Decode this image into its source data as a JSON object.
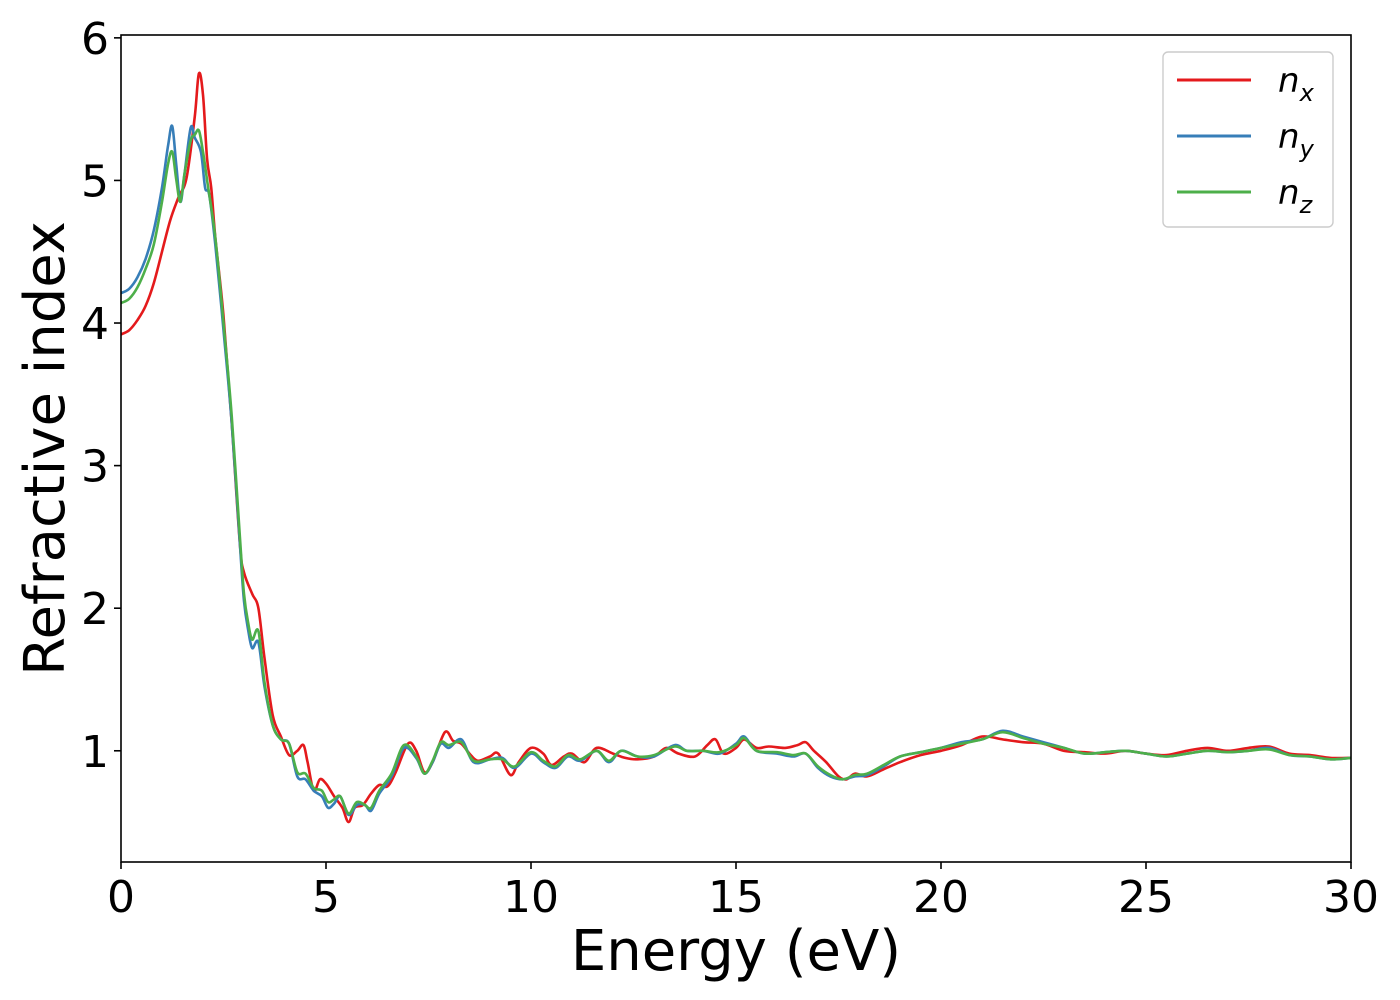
{
  "chart_data": {
    "type": "line",
    "xlabel": "Energy (eV)",
    "ylabel": "Refractive index",
    "xlim": [
      0,
      30
    ],
    "ylim": [
      0.22,
      6.02
    ],
    "xticks": [
      0,
      5,
      10,
      15,
      20,
      25,
      30
    ],
    "yticks": [
      1,
      2,
      3,
      4,
      5,
      6
    ],
    "grid": false,
    "legend_position": "top-right",
    "series": [
      {
        "name": "n",
        "subscript": "x",
        "color": "#e41a1c",
        "points": [
          [
            0,
            3.92
          ],
          [
            0.2,
            3.95
          ],
          [
            0.4,
            4.02
          ],
          [
            0.6,
            4.12
          ],
          [
            0.8,
            4.28
          ],
          [
            1.0,
            4.5
          ],
          [
            1.2,
            4.72
          ],
          [
            1.4,
            4.88
          ],
          [
            1.6,
            5.02
          ],
          [
            1.8,
            5.45
          ],
          [
            1.9,
            5.75
          ],
          [
            2.0,
            5.6
          ],
          [
            2.1,
            5.15
          ],
          [
            2.2,
            4.95
          ],
          [
            2.3,
            4.6
          ],
          [
            2.5,
            4.05
          ],
          [
            2.7,
            3.3
          ],
          [
            2.9,
            2.45
          ],
          [
            3.0,
            2.25
          ],
          [
            3.2,
            2.1
          ],
          [
            3.35,
            2.0
          ],
          [
            3.5,
            1.65
          ],
          [
            3.7,
            1.25
          ],
          [
            3.9,
            1.1
          ],
          [
            4.1,
            0.97
          ],
          [
            4.3,
            1.0
          ],
          [
            4.45,
            1.04
          ],
          [
            4.55,
            0.92
          ],
          [
            4.7,
            0.72
          ],
          [
            4.85,
            0.8
          ],
          [
            5.0,
            0.77
          ],
          [
            5.2,
            0.68
          ],
          [
            5.4,
            0.6
          ],
          [
            5.55,
            0.5
          ],
          [
            5.7,
            0.6
          ],
          [
            5.9,
            0.62
          ],
          [
            6.1,
            0.7
          ],
          [
            6.3,
            0.76
          ],
          [
            6.5,
            0.75
          ],
          [
            6.7,
            0.85
          ],
          [
            7.0,
            1.05
          ],
          [
            7.2,
            1.0
          ],
          [
            7.4,
            0.85
          ],
          [
            7.6,
            0.92
          ],
          [
            7.9,
            1.13
          ],
          [
            8.1,
            1.07
          ],
          [
            8.3,
            1.05
          ],
          [
            8.5,
            0.98
          ],
          [
            8.7,
            0.93
          ],
          [
            9.0,
            0.96
          ],
          [
            9.2,
            0.98
          ],
          [
            9.5,
            0.83
          ],
          [
            9.7,
            0.92
          ],
          [
            10.0,
            1.02
          ],
          [
            10.3,
            0.98
          ],
          [
            10.5,
            0.9
          ],
          [
            10.8,
            0.96
          ],
          [
            11.0,
            0.98
          ],
          [
            11.3,
            0.92
          ],
          [
            11.6,
            1.02
          ],
          [
            12.0,
            0.98
          ],
          [
            12.3,
            0.95
          ],
          [
            12.6,
            0.94
          ],
          [
            13.0,
            0.96
          ],
          [
            13.3,
            1.02
          ],
          [
            13.6,
            0.98
          ],
          [
            14.0,
            0.96
          ],
          [
            14.3,
            1.04
          ],
          [
            14.5,
            1.08
          ],
          [
            14.7,
            0.98
          ],
          [
            15.0,
            1.02
          ],
          [
            15.2,
            1.08
          ],
          [
            15.5,
            1.02
          ],
          [
            15.8,
            1.03
          ],
          [
            16.2,
            1.02
          ],
          [
            16.5,
            1.04
          ],
          [
            16.7,
            1.06
          ],
          [
            16.9,
            1.0
          ],
          [
            17.2,
            0.92
          ],
          [
            17.5,
            0.82
          ],
          [
            17.7,
            0.8
          ],
          [
            17.9,
            0.84
          ],
          [
            18.2,
            0.82
          ],
          [
            18.6,
            0.87
          ],
          [
            19.0,
            0.92
          ],
          [
            19.5,
            0.97
          ],
          [
            20.0,
            1.0
          ],
          [
            20.5,
            1.04
          ],
          [
            21.0,
            1.1
          ],
          [
            21.5,
            1.08
          ],
          [
            22.0,
            1.06
          ],
          [
            22.5,
            1.05
          ],
          [
            23.0,
            1.0
          ],
          [
            23.5,
            0.99
          ],
          [
            24.0,
            0.98
          ],
          [
            24.5,
            1.0
          ],
          [
            25.0,
            0.98
          ],
          [
            25.5,
            0.97
          ],
          [
            26.0,
            1.0
          ],
          [
            26.5,
            1.02
          ],
          [
            27.0,
            1.0
          ],
          [
            27.5,
            1.02
          ],
          [
            28.0,
            1.03
          ],
          [
            28.5,
            0.98
          ],
          [
            29.0,
            0.97
          ],
          [
            29.5,
            0.95
          ],
          [
            30.0,
            0.95
          ]
        ]
      },
      {
        "name": "n",
        "subscript": "y",
        "color": "#377eb8",
        "points": [
          [
            0,
            4.21
          ],
          [
            0.2,
            4.24
          ],
          [
            0.4,
            4.32
          ],
          [
            0.6,
            4.45
          ],
          [
            0.8,
            4.65
          ],
          [
            1.0,
            4.95
          ],
          [
            1.15,
            5.25
          ],
          [
            1.25,
            5.38
          ],
          [
            1.35,
            5.1
          ],
          [
            1.45,
            4.85
          ],
          [
            1.55,
            5.05
          ],
          [
            1.7,
            5.37
          ],
          [
            1.8,
            5.3
          ],
          [
            1.95,
            5.2
          ],
          [
            2.05,
            4.95
          ],
          [
            2.15,
            4.9
          ],
          [
            2.3,
            4.55
          ],
          [
            2.5,
            3.95
          ],
          [
            2.7,
            3.3
          ],
          [
            2.9,
            2.45
          ],
          [
            3.0,
            2.05
          ],
          [
            3.1,
            1.85
          ],
          [
            3.2,
            1.72
          ],
          [
            3.35,
            1.76
          ],
          [
            3.5,
            1.45
          ],
          [
            3.7,
            1.18
          ],
          [
            3.9,
            1.08
          ],
          [
            4.1,
            1.05
          ],
          [
            4.3,
            0.82
          ],
          [
            4.5,
            0.8
          ],
          [
            4.7,
            0.72
          ],
          [
            4.9,
            0.68
          ],
          [
            5.05,
            0.6
          ],
          [
            5.2,
            0.63
          ],
          [
            5.35,
            0.68
          ],
          [
            5.55,
            0.55
          ],
          [
            5.75,
            0.62
          ],
          [
            5.95,
            0.62
          ],
          [
            6.1,
            0.58
          ],
          [
            6.3,
            0.7
          ],
          [
            6.6,
            0.82
          ],
          [
            6.9,
            1.02
          ],
          [
            7.2,
            0.95
          ],
          [
            7.4,
            0.84
          ],
          [
            7.6,
            0.92
          ],
          [
            7.8,
            1.05
          ],
          [
            8.0,
            1.02
          ],
          [
            8.3,
            1.08
          ],
          [
            8.6,
            0.92
          ],
          [
            9.0,
            0.94
          ],
          [
            9.3,
            0.95
          ],
          [
            9.6,
            0.88
          ],
          [
            10.0,
            0.98
          ],
          [
            10.3,
            0.92
          ],
          [
            10.6,
            0.88
          ],
          [
            10.9,
            0.96
          ],
          [
            11.2,
            0.93
          ],
          [
            11.6,
            1.0
          ],
          [
            11.9,
            0.92
          ],
          [
            12.2,
            1.0
          ],
          [
            12.6,
            0.96
          ],
          [
            13.0,
            0.96
          ],
          [
            13.5,
            1.04
          ],
          [
            13.8,
            1.0
          ],
          [
            14.2,
            1.0
          ],
          [
            14.6,
            0.98
          ],
          [
            15.0,
            1.05
          ],
          [
            15.2,
            1.1
          ],
          [
            15.5,
            1.0
          ],
          [
            16.0,
            0.98
          ],
          [
            16.4,
            0.96
          ],
          [
            16.7,
            0.98
          ],
          [
            17.0,
            0.88
          ],
          [
            17.3,
            0.82
          ],
          [
            17.6,
            0.8
          ],
          [
            17.9,
            0.82
          ],
          [
            18.2,
            0.83
          ],
          [
            18.6,
            0.89
          ],
          [
            19.0,
            0.96
          ],
          [
            19.5,
            0.99
          ],
          [
            20.0,
            1.02
          ],
          [
            20.5,
            1.06
          ],
          [
            21.0,
            1.08
          ],
          [
            21.5,
            1.14
          ],
          [
            22.0,
            1.1
          ],
          [
            22.5,
            1.06
          ],
          [
            23.0,
            1.02
          ],
          [
            23.5,
            0.98
          ],
          [
            24.0,
            0.99
          ],
          [
            24.5,
            1.0
          ],
          [
            25.0,
            0.98
          ],
          [
            25.5,
            0.96
          ],
          [
            26.0,
            0.98
          ],
          [
            26.5,
            1.0
          ],
          [
            27.0,
            0.99
          ],
          [
            27.5,
            1.0
          ],
          [
            28.0,
            1.02
          ],
          [
            28.5,
            0.97
          ],
          [
            29.0,
            0.96
          ],
          [
            29.5,
            0.94
          ],
          [
            30.0,
            0.95
          ]
        ]
      },
      {
        "name": "n",
        "subscript": "z",
        "color": "#4daf4a",
        "points": [
          [
            0,
            4.14
          ],
          [
            0.2,
            4.17
          ],
          [
            0.4,
            4.25
          ],
          [
            0.6,
            4.38
          ],
          [
            0.8,
            4.55
          ],
          [
            1.0,
            4.85
          ],
          [
            1.15,
            5.12
          ],
          [
            1.25,
            5.2
          ],
          [
            1.35,
            5.0
          ],
          [
            1.45,
            4.85
          ],
          [
            1.55,
            5.05
          ],
          [
            1.7,
            5.28
          ],
          [
            1.8,
            5.32
          ],
          [
            1.9,
            5.35
          ],
          [
            2.0,
            5.2
          ],
          [
            2.1,
            5.0
          ],
          [
            2.3,
            4.6
          ],
          [
            2.5,
            4.0
          ],
          [
            2.7,
            3.35
          ],
          [
            2.9,
            2.5
          ],
          [
            3.0,
            2.1
          ],
          [
            3.1,
            1.9
          ],
          [
            3.2,
            1.78
          ],
          [
            3.35,
            1.84
          ],
          [
            3.5,
            1.48
          ],
          [
            3.7,
            1.18
          ],
          [
            3.9,
            1.08
          ],
          [
            4.1,
            1.05
          ],
          [
            4.3,
            0.85
          ],
          [
            4.5,
            0.84
          ],
          [
            4.7,
            0.74
          ],
          [
            4.9,
            0.72
          ],
          [
            5.05,
            0.64
          ],
          [
            5.2,
            0.66
          ],
          [
            5.35,
            0.68
          ],
          [
            5.55,
            0.56
          ],
          [
            5.75,
            0.64
          ],
          [
            5.95,
            0.62
          ],
          [
            6.1,
            0.6
          ],
          [
            6.3,
            0.72
          ],
          [
            6.6,
            0.84
          ],
          [
            6.9,
            1.04
          ],
          [
            7.2,
            0.96
          ],
          [
            7.4,
            0.84
          ],
          [
            7.6,
            0.93
          ],
          [
            7.8,
            1.06
          ],
          [
            8.0,
            1.04
          ],
          [
            8.3,
            1.06
          ],
          [
            8.6,
            0.93
          ],
          [
            9.0,
            0.94
          ],
          [
            9.3,
            0.94
          ],
          [
            9.6,
            0.89
          ],
          [
            10.0,
            0.99
          ],
          [
            10.3,
            0.93
          ],
          [
            10.6,
            0.89
          ],
          [
            10.9,
            0.97
          ],
          [
            11.2,
            0.94
          ],
          [
            11.6,
            1.0
          ],
          [
            11.9,
            0.93
          ],
          [
            12.2,
            1.0
          ],
          [
            12.6,
            0.96
          ],
          [
            13.0,
            0.97
          ],
          [
            13.5,
            1.03
          ],
          [
            13.8,
            1.0
          ],
          [
            14.2,
            1.0
          ],
          [
            14.6,
            0.99
          ],
          [
            15.0,
            1.04
          ],
          [
            15.2,
            1.09
          ],
          [
            15.5,
            1.0
          ],
          [
            16.0,
            0.99
          ],
          [
            16.4,
            0.97
          ],
          [
            16.7,
            0.98
          ],
          [
            17.0,
            0.89
          ],
          [
            17.3,
            0.83
          ],
          [
            17.6,
            0.8
          ],
          [
            17.9,
            0.83
          ],
          [
            18.2,
            0.84
          ],
          [
            18.6,
            0.9
          ],
          [
            19.0,
            0.96
          ],
          [
            19.5,
            0.99
          ],
          [
            20.0,
            1.02
          ],
          [
            20.5,
            1.05
          ],
          [
            21.0,
            1.08
          ],
          [
            21.5,
            1.13
          ],
          [
            22.0,
            1.09
          ],
          [
            22.5,
            1.05
          ],
          [
            23.0,
            1.02
          ],
          [
            23.5,
            0.98
          ],
          [
            24.0,
            0.99
          ],
          [
            24.5,
            1.0
          ],
          [
            25.0,
            0.98
          ],
          [
            25.5,
            0.96
          ],
          [
            26.0,
            0.98
          ],
          [
            26.5,
            1.0
          ],
          [
            27.0,
            0.99
          ],
          [
            27.5,
            1.0
          ],
          [
            28.0,
            1.01
          ],
          [
            28.5,
            0.97
          ],
          [
            29.0,
            0.96
          ],
          [
            29.5,
            0.94
          ],
          [
            30.0,
            0.95
          ]
        ]
      }
    ]
  }
}
